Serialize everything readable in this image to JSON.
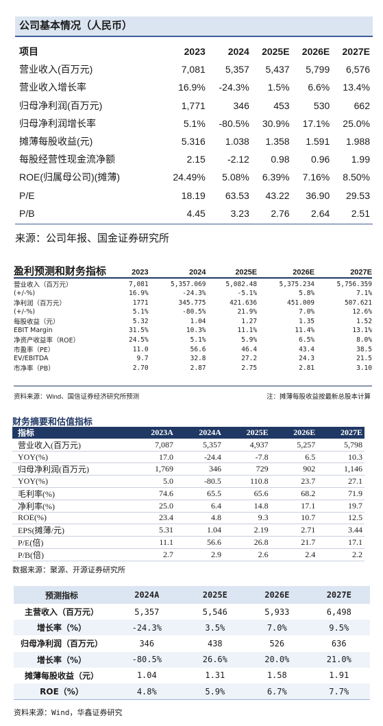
{
  "block1": {
    "title": "公司基本情况（人民币）",
    "header": [
      "项目",
      "2023",
      "2024",
      "2025E",
      "2026E",
      "2027E"
    ],
    "rows": [
      [
        "营业收入(百万元)",
        "7,081",
        "5,357",
        "5,437",
        "5,799",
        "6,576"
      ],
      [
        "营业收入增长率",
        "16.9%",
        "-24.3%",
        "1.5%",
        "6.6%",
        "13.4%"
      ],
      [
        "归母净利润(百万元)",
        "1,771",
        "346",
        "453",
        "530",
        "662"
      ],
      [
        "归母净利润增长率",
        "5.1%",
        "-80.5%",
        "30.9%",
        "17.1%",
        "25.0%"
      ],
      [
        "摊薄每股收益(元)",
        "5.316",
        "1.038",
        "1.358",
        "1.591",
        "1.988"
      ],
      [
        "每股经营性现金流净额",
        "2.15",
        "-2.12",
        "0.98",
        "0.96",
        "1.99"
      ],
      [
        "ROE(归属母公司)(摊薄)",
        "24.49%",
        "5.08%",
        "6.39%",
        "7.16%",
        "8.50%"
      ],
      [
        "P/E",
        "18.19",
        "63.53",
        "43.22",
        "36.90",
        "29.53"
      ],
      [
        "P/B",
        "4.45",
        "3.23",
        "2.76",
        "2.64",
        "2.51"
      ]
    ],
    "source": "来源：公司年报、国金证券研究所"
  },
  "block2": {
    "title": "盈利预测和财务指标",
    "header": [
      "",
      "2023",
      "2024",
      "2025E",
      "2026E",
      "2027E"
    ],
    "rows": [
      [
        "营业收入（百万元）",
        "7,081",
        "5,357.069",
        "5,082.48",
        "5,375.234",
        "5,756.359"
      ],
      [
        "(+/-%)",
        "16.9%",
        "-24.3%",
        "-5.1%",
        "5.8%",
        "7.1%"
      ],
      [
        "净利润（百万元）",
        "1771",
        "345.775",
        "421.636",
        "451.009",
        "507.621"
      ],
      [
        "(+/-%)",
        "5.1%",
        "-80.5%",
        "21.9%",
        "7.0%",
        "12.6%"
      ],
      [
        "每股收益（元）",
        "5.32",
        "1.04",
        "1.27",
        "1.35",
        "1.52"
      ],
      [
        "EBIT Margin",
        "31.5%",
        "10.3%",
        "11.1%",
        "11.4%",
        "13.1%"
      ],
      [
        "净资产收益率（ROE）",
        "24.5%",
        "5.1%",
        "5.9%",
        "6.5%",
        "8.0%"
      ],
      [
        "市盈率（PE）",
        "11.0",
        "56.6",
        "46.4",
        "43.4",
        "38.5"
      ],
      [
        "EV/EBITDA",
        "9.7",
        "32.8",
        "27.2",
        "24.3",
        "21.5"
      ],
      [
        "市净率（PB）",
        "2.70",
        "2.87",
        "2.75",
        "2.81",
        "3.10"
      ]
    ],
    "source": "资料来源：Wind、国信证券经济研究所预测",
    "note": "注：摊薄每股收益按最新总股本计算"
  },
  "block3": {
    "title": "财务摘要和估值指标",
    "header": [
      "指标",
      "2023A",
      "2024A",
      "2025E",
      "2026E",
      "2027E"
    ],
    "rows": [
      [
        "营业收入(百万元)",
        "7,087",
        "5,357",
        "4,937",
        "5,257",
        "5,798"
      ],
      [
        "YOY(%)",
        "17.0",
        "-24.4",
        "-7.8",
        "6.5",
        "10.3"
      ],
      [
        "归母净利润(百万元)",
        "1,769",
        "346",
        "729",
        "902",
        "1,146"
      ],
      [
        "YOY(%)",
        "5.0",
        "-80.5",
        "110.8",
        "23.7",
        "27.1"
      ],
      [
        "毛利率(%)",
        "74.6",
        "65.5",
        "65.6",
        "68.2",
        "71.9"
      ],
      [
        "净利率(%)",
        "25.0",
        "6.4",
        "14.8",
        "17.1",
        "19.7"
      ],
      [
        "ROE(%)",
        "23.4",
        "4.8",
        "9.3",
        "10.7",
        "12.5"
      ],
      [
        "EPS(摊薄/元)",
        "5.31",
        "1.04",
        "2.19",
        "2.71",
        "3.44"
      ],
      [
        "P/E(倍)",
        "11.1",
        "56.6",
        "26.8",
        "21.7",
        "17.1"
      ],
      [
        "P/B(倍)",
        "2.7",
        "2.9",
        "2.6",
        "2.4",
        "2.2"
      ]
    ],
    "source": "数据来源：聚源、开源证券研究所"
  },
  "block4": {
    "header": [
      "预测指标",
      "2024A",
      "2025E",
      "2026E",
      "2027E"
    ],
    "rows": [
      [
        "主营收入（百万元）",
        "5,357",
        "5,546",
        "5,933",
        "6,498"
      ],
      [
        "增长率（%）",
        "-24.3%",
        "3.5%",
        "7.0%",
        "9.5%"
      ],
      [
        "归母净利润（百万元）",
        "346",
        "438",
        "526",
        "636"
      ],
      [
        "增长率（%）",
        "-80.5%",
        "26.6%",
        "20.0%",
        "21.0%"
      ],
      [
        "摊薄每股收益（元）",
        "1.04",
        "1.31",
        "1.58",
        "1.91"
      ],
      [
        "ROE（%）",
        "4.8%",
        "5.9%",
        "6.7%",
        "7.7%"
      ]
    ],
    "source": "资料来源：Wind，华鑫证券研究"
  }
}
